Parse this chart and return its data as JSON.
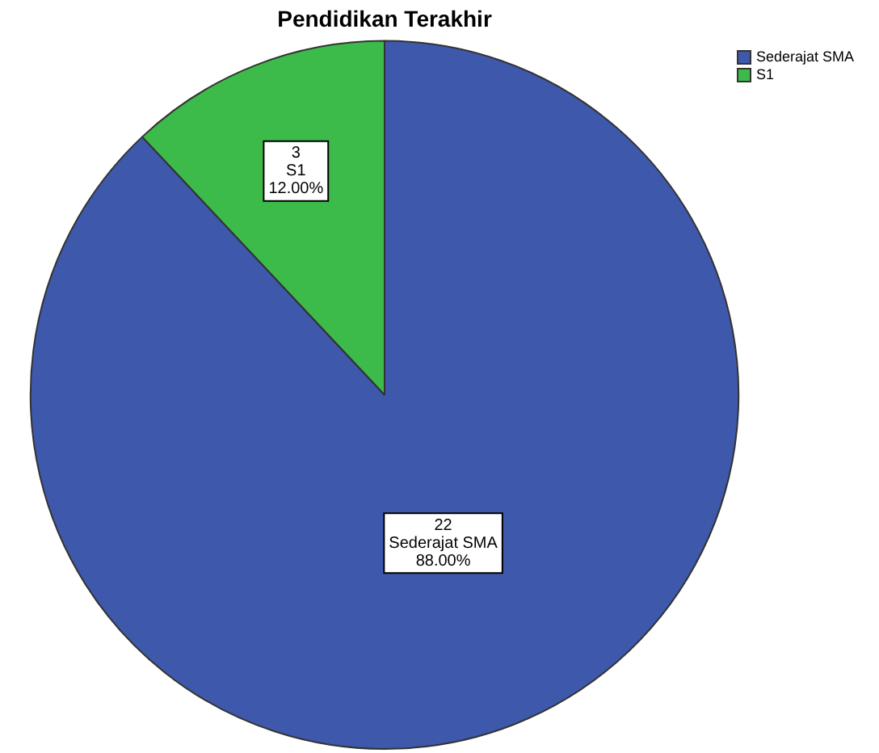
{
  "chart_data": {
    "type": "pie",
    "title": "Pendidikan Terakhir",
    "categories": [
      "Sederajat SMA",
      "S1"
    ],
    "values": [
      22,
      3
    ],
    "colors": [
      "#3e58ac",
      "#3cbb4a"
    ],
    "value_labels": [
      "22",
      "3"
    ],
    "annotations": [
      {
        "text": "88.00%",
        "x": "Sederajat SMA"
      },
      {
        "text": "12.00%",
        "x": "S1"
      }
    ],
    "legend": "top right"
  }
}
